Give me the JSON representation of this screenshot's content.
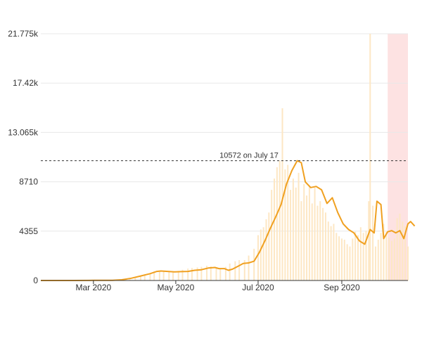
{
  "chart_data": {
    "type": "bar+line",
    "title": "",
    "xlabel": "",
    "ylabel": "",
    "x_range": [
      "2020-01-22",
      "2020-10-20"
    ],
    "ylim": [
      0,
      21775
    ],
    "y_ticks": [
      {
        "value": 0,
        "label": "0"
      },
      {
        "value": 4355,
        "label": "4355"
      },
      {
        "value": 8710,
        "label": "8710"
      },
      {
        "value": 13065,
        "label": "13.065k"
      },
      {
        "value": 17420,
        "label": "17.42k"
      },
      {
        "value": 21775,
        "label": "21.775k"
      }
    ],
    "x_ticks": [
      {
        "date": "2020-03-01",
        "label": "Mar 2020"
      },
      {
        "date": "2020-05-01",
        "label": "May 2020"
      },
      {
        "date": "2020-07-01",
        "label": "Jul 2020"
      },
      {
        "date": "2020-09-01",
        "label": "Sep 2020"
      }
    ],
    "grid": "horizontal",
    "colors": {
      "line": "#f0a020",
      "bars": "#fde7c4",
      "highlight": "#fde2e2",
      "grid": "#e8e8e8",
      "axis": "#333333",
      "reference": "#333333"
    },
    "reference_line": {
      "value": 10572,
      "label": "10572 on July 17"
    },
    "highlight_range": [
      "2020-10-05",
      "2020-10-20"
    ],
    "series": [
      {
        "kind": "bars",
        "points": [
          [
            "2020-01-22",
            0
          ],
          [
            "2020-01-29",
            0
          ],
          [
            "2020-02-05",
            0
          ],
          [
            "2020-02-12",
            0
          ],
          [
            "2020-02-19",
            5
          ],
          [
            "2020-02-26",
            10
          ],
          [
            "2020-03-04",
            15
          ],
          [
            "2020-03-11",
            20
          ],
          [
            "2020-03-18",
            40
          ],
          [
            "2020-03-25",
            150
          ],
          [
            "2020-03-28",
            90
          ],
          [
            "2020-04-01",
            300
          ],
          [
            "2020-04-05",
            400
          ],
          [
            "2020-04-08",
            550
          ],
          [
            "2020-04-12",
            650
          ],
          [
            "2020-04-15",
            800
          ],
          [
            "2020-04-19",
            850
          ],
          [
            "2020-04-22",
            800
          ],
          [
            "2020-04-26",
            750
          ],
          [
            "2020-04-29",
            800
          ],
          [
            "2020-05-03",
            850
          ],
          [
            "2020-05-06",
            950
          ],
          [
            "2020-05-10",
            1050
          ],
          [
            "2020-05-13",
            1100
          ],
          [
            "2020-05-17",
            1150
          ],
          [
            "2020-05-20",
            1200
          ],
          [
            "2020-05-24",
            1300
          ],
          [
            "2020-05-27",
            1250
          ],
          [
            "2020-05-31",
            1100
          ],
          [
            "2020-06-03",
            1000
          ],
          [
            "2020-06-07",
            1200
          ],
          [
            "2020-06-10",
            1500
          ],
          [
            "2020-06-14",
            1700
          ],
          [
            "2020-06-17",
            1800
          ],
          [
            "2020-06-21",
            1800
          ],
          [
            "2020-06-24",
            2200
          ],
          [
            "2020-06-28",
            2800
          ],
          [
            "2020-07-01",
            4000
          ],
          [
            "2020-07-03",
            4500
          ],
          [
            "2020-07-05",
            4700
          ],
          [
            "2020-07-07",
            5400
          ],
          [
            "2020-07-09",
            6000
          ],
          [
            "2020-07-11",
            8000
          ],
          [
            "2020-07-13",
            9000
          ],
          [
            "2020-07-15",
            10000
          ],
          [
            "2020-07-17",
            10572
          ],
          [
            "2020-07-19",
            15200
          ],
          [
            "2020-07-21",
            9800
          ],
          [
            "2020-07-23",
            10200
          ],
          [
            "2020-07-25",
            8000
          ],
          [
            "2020-07-27",
            9000
          ],
          [
            "2020-07-29",
            8200
          ],
          [
            "2020-07-31",
            9500
          ],
          [
            "2020-08-02",
            7000
          ],
          [
            "2020-08-04",
            8500
          ],
          [
            "2020-08-06",
            7500
          ],
          [
            "2020-08-08",
            8300
          ],
          [
            "2020-08-10",
            6800
          ],
          [
            "2020-08-12",
            8200
          ],
          [
            "2020-08-14",
            6600
          ],
          [
            "2020-08-16",
            7000
          ],
          [
            "2020-08-18",
            6400
          ],
          [
            "2020-08-20",
            6000
          ],
          [
            "2020-08-22",
            5200
          ],
          [
            "2020-08-24",
            4800
          ],
          [
            "2020-08-26",
            5000
          ],
          [
            "2020-08-28",
            4200
          ],
          [
            "2020-08-30",
            3900
          ],
          [
            "2020-09-01",
            3700
          ],
          [
            "2020-09-03",
            3600
          ],
          [
            "2020-09-05",
            3200
          ],
          [
            "2020-09-07",
            3000
          ],
          [
            "2020-09-09",
            3700
          ],
          [
            "2020-09-11",
            4300
          ],
          [
            "2020-09-13",
            4000
          ],
          [
            "2020-09-15",
            4700
          ],
          [
            "2020-09-17",
            4200
          ],
          [
            "2020-09-19",
            4400
          ],
          [
            "2020-09-21",
            7000
          ],
          [
            "2020-09-22",
            21775
          ],
          [
            "2020-09-24",
            6600
          ],
          [
            "2020-09-26",
            3000
          ],
          [
            "2020-09-28",
            3600
          ],
          [
            "2020-09-30",
            4200
          ],
          [
            "2020-10-02",
            5000
          ],
          [
            "2020-10-04",
            4300
          ],
          [
            "2020-10-06",
            3800
          ],
          [
            "2020-10-08",
            3500
          ],
          [
            "2020-10-10",
            3700
          ],
          [
            "2020-10-12",
            5500
          ],
          [
            "2020-10-14",
            5900
          ],
          [
            "2020-10-16",
            5200
          ],
          [
            "2020-10-18",
            4800
          ],
          [
            "2020-10-20",
            3000
          ]
        ]
      },
      {
        "kind": "line",
        "points": [
          [
            "2020-01-22",
            0
          ],
          [
            "2020-02-15",
            0
          ],
          [
            "2020-03-01",
            10
          ],
          [
            "2020-03-15",
            20
          ],
          [
            "2020-03-22",
            60
          ],
          [
            "2020-03-29",
            200
          ],
          [
            "2020-04-05",
            400
          ],
          [
            "2020-04-12",
            600
          ],
          [
            "2020-04-17",
            800
          ],
          [
            "2020-04-20",
            840
          ],
          [
            "2020-04-25",
            800
          ],
          [
            "2020-04-30",
            760
          ],
          [
            "2020-05-05",
            780
          ],
          [
            "2020-05-10",
            800
          ],
          [
            "2020-05-15",
            900
          ],
          [
            "2020-05-20",
            950
          ],
          [
            "2020-05-25",
            1100
          ],
          [
            "2020-05-30",
            1150
          ],
          [
            "2020-06-02",
            1050
          ],
          [
            "2020-06-06",
            1050
          ],
          [
            "2020-06-09",
            900
          ],
          [
            "2020-06-12",
            1000
          ],
          [
            "2020-06-16",
            1250
          ],
          [
            "2020-06-20",
            1500
          ],
          [
            "2020-06-24",
            1550
          ],
          [
            "2020-06-28",
            1700
          ],
          [
            "2020-07-02",
            2500
          ],
          [
            "2020-07-06",
            3500
          ],
          [
            "2020-07-10",
            4600
          ],
          [
            "2020-07-14",
            5600
          ],
          [
            "2020-07-18",
            6700
          ],
          [
            "2020-07-22",
            8500
          ],
          [
            "2020-07-26",
            9700
          ],
          [
            "2020-07-30",
            10572
          ],
          [
            "2020-08-02",
            10400
          ],
          [
            "2020-08-05",
            8700
          ],
          [
            "2020-08-09",
            8200
          ],
          [
            "2020-08-13",
            8300
          ],
          [
            "2020-08-17",
            8000
          ],
          [
            "2020-08-21",
            6800
          ],
          [
            "2020-08-25",
            7300
          ],
          [
            "2020-08-29",
            6000
          ],
          [
            "2020-09-02",
            5000
          ],
          [
            "2020-09-06",
            4500
          ],
          [
            "2020-09-10",
            4200
          ],
          [
            "2020-09-14",
            3500
          ],
          [
            "2020-09-18",
            3200
          ],
          [
            "2020-09-22",
            4500
          ],
          [
            "2020-09-25",
            4200
          ],
          [
            "2020-09-27",
            7000
          ],
          [
            "2020-09-30",
            6700
          ],
          [
            "2020-10-02",
            3700
          ],
          [
            "2020-10-05",
            4300
          ],
          [
            "2020-10-08",
            4400
          ],
          [
            "2020-10-11",
            4200
          ],
          [
            "2020-10-14",
            4400
          ],
          [
            "2020-10-17",
            3700
          ],
          [
            "2020-10-20",
            5000
          ],
          [
            "2020-10-22",
            5200
          ],
          [
            "2020-10-25",
            4800
          ]
        ]
      }
    ]
  }
}
